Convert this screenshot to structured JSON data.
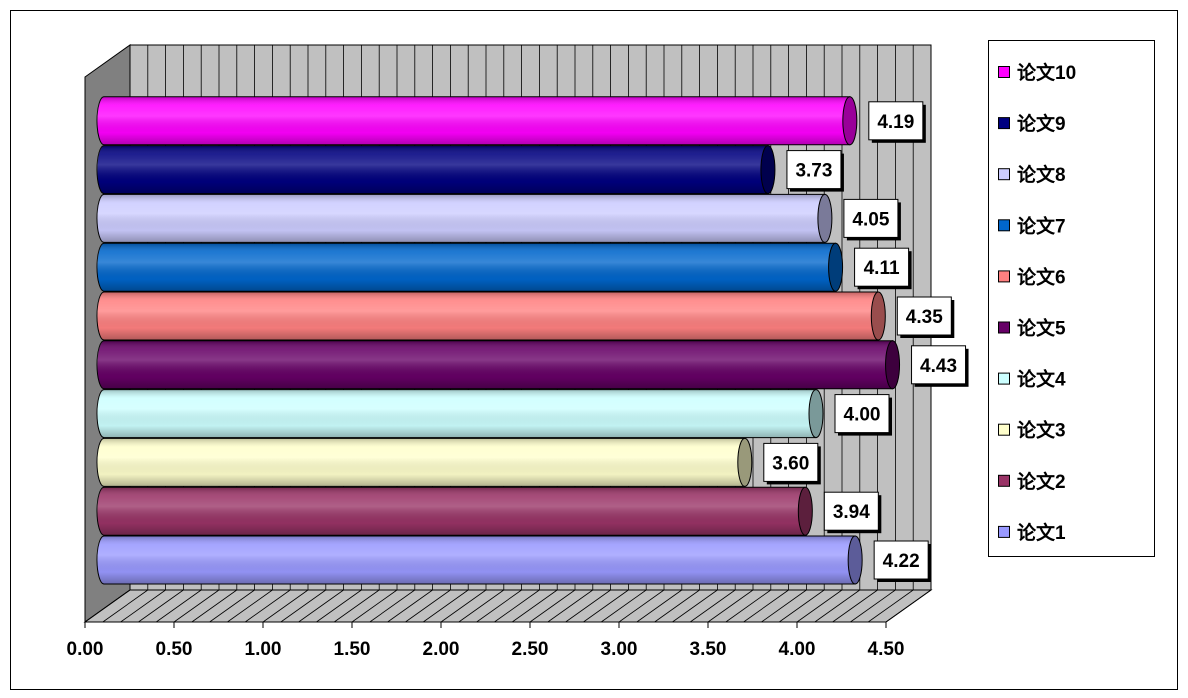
{
  "chart_data": {
    "type": "bar",
    "orientation": "horizontal",
    "style": "3d-cylinder",
    "xlim": [
      0,
      4.5
    ],
    "x_ticks": [
      0,
      0.5,
      1,
      1.5,
      2,
      2.5,
      3,
      3.5,
      4,
      4.5
    ],
    "x_tick_labels": [
      "0.00",
      "0.50",
      "1.00",
      "1.50",
      "2.00",
      "2.50",
      "3.00",
      "3.50",
      "4.00",
      "4.50"
    ],
    "grid": true,
    "data_labels": true,
    "legend": "right",
    "series": [
      {
        "name": "论文1",
        "values": [
          4.22
        ],
        "labels": [
          "4.22"
        ],
        "color": "#9999FF"
      },
      {
        "name": "论文2",
        "values": [
          3.94
        ],
        "labels": [
          "3.94"
        ],
        "color": "#993366"
      },
      {
        "name": "论文3",
        "values": [
          3.6
        ],
        "labels": [
          "3.60"
        ],
        "color": "#FFFFCC"
      },
      {
        "name": "论文4",
        "values": [
          4.0
        ],
        "labels": [
          "4.00"
        ],
        "color": "#CCFFFF"
      },
      {
        "name": "论文5",
        "values": [
          4.43
        ],
        "labels": [
          "4.43"
        ],
        "color": "#660066"
      },
      {
        "name": "论文6",
        "values": [
          4.35
        ],
        "labels": [
          "4.35"
        ],
        "color": "#FF8080"
      },
      {
        "name": "论文7",
        "values": [
          4.11
        ],
        "labels": [
          "4.11"
        ],
        "color": "#0066CC"
      },
      {
        "name": "论文8",
        "values": [
          4.05
        ],
        "labels": [
          "4.05"
        ],
        "color": "#CCCCFF"
      },
      {
        "name": "论文9",
        "values": [
          3.73
        ],
        "labels": [
          "3.73"
        ],
        "color": "#000080"
      },
      {
        "name": "论文10",
        "values": [
          4.19
        ],
        "labels": [
          "4.19"
        ],
        "color": "#FF00FF"
      }
    ],
    "colors": {
      "back_wall": "#C0C0C0",
      "side_wall": "#808080",
      "floor": "#C0C0C0",
      "gridline": "#000000",
      "label_box": "#FFFFFF",
      "label_shadow": "#000000"
    }
  }
}
